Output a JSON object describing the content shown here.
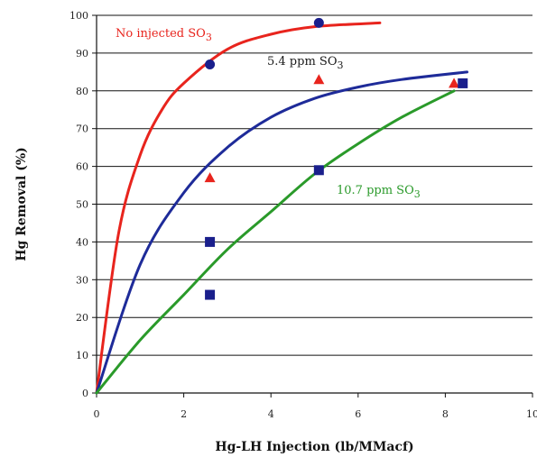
{
  "chart_data": {
    "type": "scatter",
    "title": "",
    "xlabel": "Hg-LH Injection (lb/MMacf)",
    "ylabel": "Hg Removal (%)",
    "xlim": [
      0,
      10
    ],
    "ylim": [
      0,
      100
    ],
    "x_ticks": [
      "0",
      "2",
      "4",
      "6",
      "8",
      "10"
    ],
    "y_ticks": [
      "0",
      "10",
      "20",
      "30",
      "40",
      "50",
      "60",
      "70",
      "80",
      "90",
      "100"
    ],
    "grid": "horizontal",
    "legend": "none",
    "series": [
      {
        "name": "No injected SO3",
        "color": "#e8241d",
        "marker": "circle",
        "marker_color": "#1a1f8c",
        "points": [
          {
            "x": 2.6,
            "y": 87
          },
          {
            "x": 5.1,
            "y": 98
          }
        ],
        "fit": [
          {
            "x": 0,
            "y": 0
          },
          {
            "x": 0.5,
            "y": 42
          },
          {
            "x": 1,
            "y": 63
          },
          {
            "x": 1.5,
            "y": 75
          },
          {
            "x": 2,
            "y": 82
          },
          {
            "x": 3,
            "y": 91
          },
          {
            "x": 4,
            "y": 95
          },
          {
            "x": 5,
            "y": 97
          },
          {
            "x": 6.5,
            "y": 98
          }
        ]
      },
      {
        "name": "5.4 ppm SO3",
        "color": "#1e2b99",
        "marker": "triangle",
        "marker_color": "#e8241d",
        "points": [
          {
            "x": 2.6,
            "y": 57
          },
          {
            "x": 5.1,
            "y": 83
          },
          {
            "x": 8.2,
            "y": 82
          }
        ],
        "fit": [
          {
            "x": 0,
            "y": 0
          },
          {
            "x": 1,
            "y": 34
          },
          {
            "x": 2,
            "y": 53
          },
          {
            "x": 3,
            "y": 65
          },
          {
            "x": 4,
            "y": 73
          },
          {
            "x": 5,
            "y": 78
          },
          {
            "x": 6,
            "y": 81
          },
          {
            "x": 7,
            "y": 83
          },
          {
            "x": 8.5,
            "y": 85
          }
        ]
      },
      {
        "name": "10.7 ppm SO3",
        "color": "#2a9a2a",
        "marker": "square",
        "marker_color": "#1a1f8c",
        "points": [
          {
            "x": 2.6,
            "y": 26
          },
          {
            "x": 2.6,
            "y": 40
          },
          {
            "x": 5.1,
            "y": 59
          },
          {
            "x": 8.4,
            "y": 82
          }
        ],
        "fit": [
          {
            "x": 0,
            "y": 0
          },
          {
            "x": 1,
            "y": 14
          },
          {
            "x": 2,
            "y": 26
          },
          {
            "x": 3,
            "y": 38
          },
          {
            "x": 4,
            "y": 48
          },
          {
            "x": 5,
            "y": 58
          },
          {
            "x": 6,
            "y": 66
          },
          {
            "x": 7,
            "y": 73
          },
          {
            "x": 8.2,
            "y": 80
          }
        ]
      }
    ],
    "annotations": [
      {
        "base": "No injected SO",
        "sub": "3",
        "color": "#e8241d",
        "series": 0
      },
      {
        "base": "5.4 ppm SO",
        "sub": "3",
        "color": "#1a1a1a",
        "series": 1
      },
      {
        "base": "10.7 ppm SO",
        "sub": "3",
        "color": "#2a9a2a",
        "series": 2
      }
    ]
  }
}
